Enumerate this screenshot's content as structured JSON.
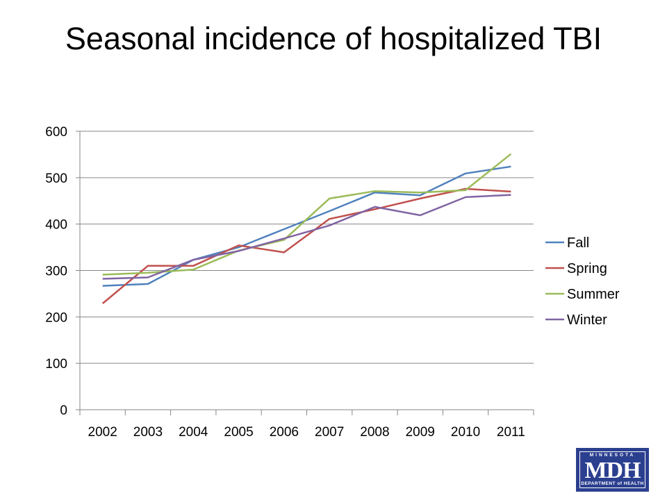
{
  "title": "Seasonal incidence of hospitalized TBI",
  "logo": {
    "top": "MINNESOTA",
    "main": "MDH",
    "bottom": "DEPARTMENT of HEALTH"
  },
  "chart_data": {
    "type": "line",
    "title": "Seasonal incidence of hospitalized TBI",
    "xlabel": "",
    "ylabel": "",
    "categories": [
      "2002",
      "2003",
      "2004",
      "2005",
      "2006",
      "2007",
      "2008",
      "2009",
      "2010",
      "2011"
    ],
    "ylim": [
      0,
      600
    ],
    "yticks": [
      0,
      100,
      200,
      300,
      400,
      500,
      600
    ],
    "grid": true,
    "legend_position": "right",
    "series": [
      {
        "name": "Fall",
        "color": "#4f81bd",
        "values": [
          267,
          271,
          323,
          350,
          389,
          428,
          468,
          462,
          509,
          524
        ]
      },
      {
        "name": "Spring",
        "color": "#c0504d",
        "values": [
          229,
          310,
          310,
          354,
          339,
          411,
          432,
          455,
          476,
          470
        ]
      },
      {
        "name": "Summer",
        "color": "#9bbb59",
        "values": [
          291,
          295,
          302,
          343,
          366,
          455,
          471,
          468,
          473,
          551
        ]
      },
      {
        "name": "Winter",
        "color": "#8064a2",
        "values": [
          282,
          285,
          323,
          342,
          369,
          397,
          437,
          419,
          458,
          463
        ]
      }
    ]
  }
}
